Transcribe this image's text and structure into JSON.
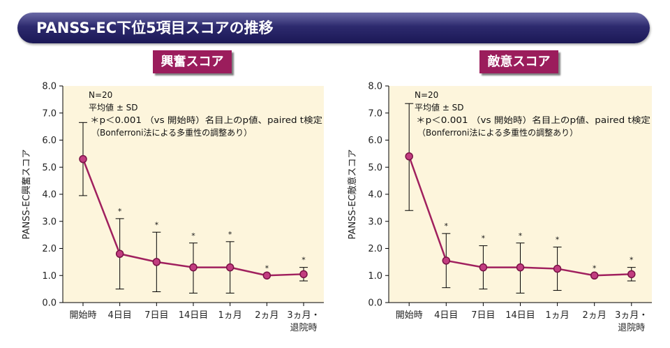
{
  "header": {
    "title": "PANSS-EC下位5項目スコアの推移"
  },
  "colors": {
    "banner": "#1b1856",
    "title_box": "#9b1d5c",
    "line": "#a0205e",
    "plot_bg": "#fdf5dc"
  },
  "chart_data": [
    {
      "type": "line",
      "title": "興奮スコア",
      "ylabel": "PANSS-EC興奮スコア",
      "ylim": [
        0,
        8
      ],
      "yticks": [
        "0.0",
        "1.0",
        "2.0",
        "3.0",
        "4.0",
        "5.0",
        "6.0",
        "7.0",
        "8.0"
      ],
      "categories": [
        "開始時",
        "4日目",
        "7日目",
        "14日目",
        "1ヵ月",
        "2ヵ月",
        "3ヵ月・退院時"
      ],
      "values": [
        5.3,
        1.8,
        1.5,
        1.3,
        1.3,
        1.0,
        1.05
      ],
      "sd_upper": [
        6.65,
        3.1,
        2.6,
        2.2,
        2.25,
        1.0,
        1.3
      ],
      "sd_lower": [
        3.95,
        0.5,
        0.4,
        0.35,
        0.35,
        1.0,
        0.8
      ],
      "significance": [
        "",
        "*",
        "*",
        "*",
        "*",
        "*",
        "*"
      ],
      "notes": [
        "N=20",
        "平均値 ± SD",
        "＊p＜0.001 （vs 開始時）名目上のp値、paired t検定",
        "（Bonferroni法による多重性の調整あり）"
      ],
      "grid": false,
      "legend": "none"
    },
    {
      "type": "line",
      "title": "敵意スコア",
      "ylabel": "PANSS-EC敵意スコア",
      "ylim": [
        0,
        8
      ],
      "yticks": [
        "0.0",
        "1.0",
        "2.0",
        "3.0",
        "4.0",
        "5.0",
        "6.0",
        "7.0",
        "8.0"
      ],
      "categories": [
        "開始時",
        "4日目",
        "7日目",
        "14日目",
        "1ヵ月",
        "2ヵ月",
        "3ヵ月・退院時"
      ],
      "values": [
        5.4,
        1.55,
        1.3,
        1.3,
        1.25,
        1.0,
        1.05
      ],
      "sd_upper": [
        7.35,
        2.55,
        2.1,
        2.2,
        2.05,
        1.0,
        1.3
      ],
      "sd_lower": [
        3.4,
        0.55,
        0.5,
        0.35,
        0.45,
        1.0,
        0.8
      ],
      "significance": [
        "",
        "*",
        "*",
        "*",
        "*",
        "*",
        "*"
      ],
      "notes": [
        "N=20",
        "平均値 ± SD",
        "＊p＜0.001 （vs 開始時）名目上のp値、paired t検定",
        "（Bonferroni法による多重性の調整あり）"
      ],
      "grid": false,
      "legend": "none"
    }
  ]
}
